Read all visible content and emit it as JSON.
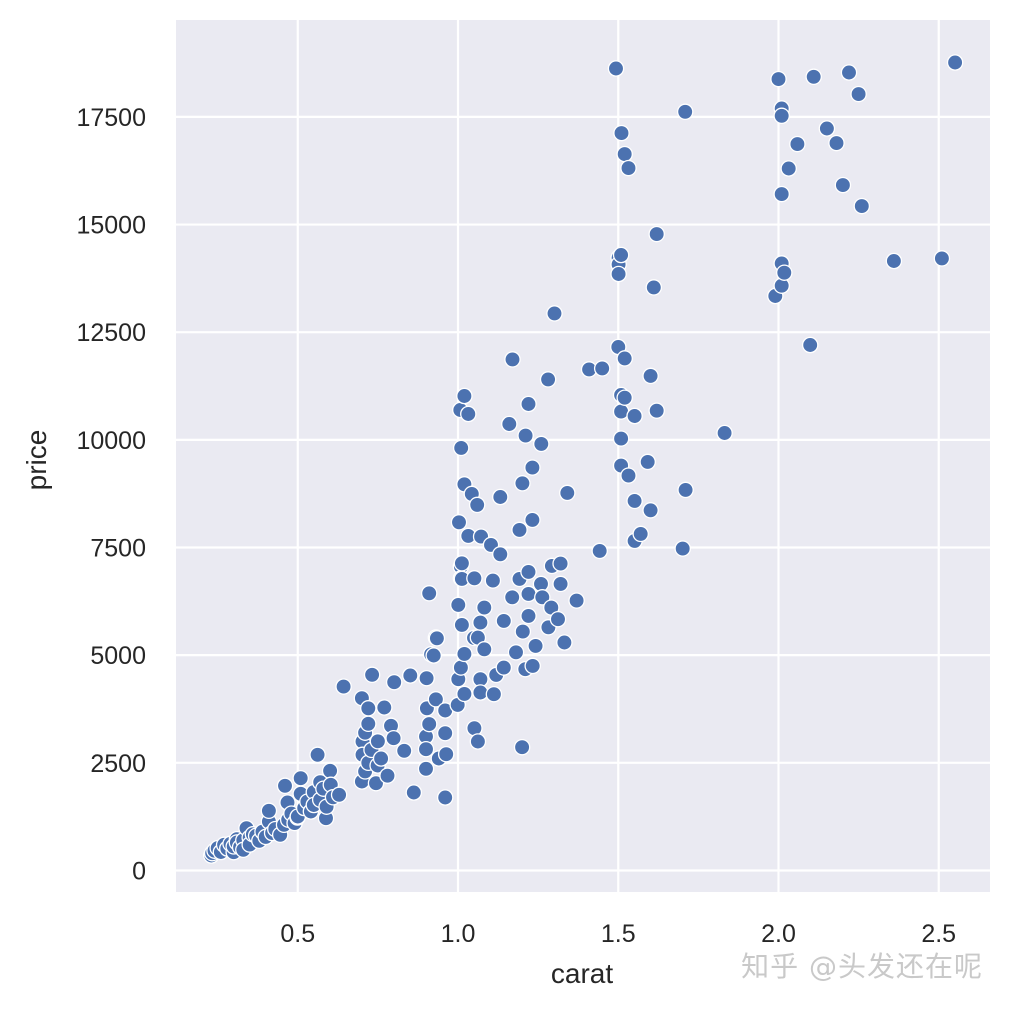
{
  "chart_data": {
    "type": "scatter",
    "title": "",
    "xlabel": "carat",
    "ylabel": "price",
    "xlim": [
      0.12,
      2.66
    ],
    "ylim": [
      -500,
      19750
    ],
    "grid": true,
    "legend": null,
    "style": {
      "background": "#eaeaf2",
      "gridline": "#ffffff",
      "marker_color": "#4c72b0",
      "marker_edge": "#ffffff"
    },
    "x_ticks": [
      0.5,
      1.0,
      1.5,
      2.0,
      2.5
    ],
    "x_tick_labels": [
      "0.5",
      "1.0",
      "1.5",
      "2.0",
      "2.5"
    ],
    "y_ticks": [
      0,
      2500,
      5000,
      7500,
      10000,
      12500,
      15000,
      17500
    ],
    "y_tick_labels": [
      "0",
      "2500",
      "5000",
      "7500",
      "10000",
      "12500",
      "15000",
      "17500"
    ],
    "points": [
      [
        0.23,
        348
      ],
      [
        0.233,
        402
      ],
      [
        0.24,
        460
      ],
      [
        0.25,
        520
      ],
      [
        0.26,
        430
      ],
      [
        0.27,
        596
      ],
      [
        0.28,
        510
      ],
      [
        0.29,
        620
      ],
      [
        0.3,
        425
      ],
      [
        0.3,
        560
      ],
      [
        0.31,
        727
      ],
      [
        0.31,
        650
      ],
      [
        0.32,
        540
      ],
      [
        0.33,
        700
      ],
      [
        0.33,
        480
      ],
      [
        0.34,
        982
      ],
      [
        0.35,
        760
      ],
      [
        0.35,
        600
      ],
      [
        0.36,
        840
      ],
      [
        0.37,
        805
      ],
      [
        0.38,
        690
      ],
      [
        0.39,
        900
      ],
      [
        0.4,
        780
      ],
      [
        0.41,
        1137
      ],
      [
        0.41,
        1386
      ],
      [
        0.42,
        870
      ],
      [
        0.43,
        960
      ],
      [
        0.445,
        829
      ],
      [
        0.457,
        1061
      ],
      [
        0.46,
        1966
      ],
      [
        0.468,
        1578
      ],
      [
        0.47,
        1180
      ],
      [
        0.48,
        1320
      ],
      [
        0.49,
        1100
      ],
      [
        0.499,
        1230
      ],
      [
        0.5,
        1253
      ],
      [
        0.509,
        2143
      ],
      [
        0.509,
        1780
      ],
      [
        0.52,
        1450
      ],
      [
        0.53,
        1600
      ],
      [
        0.541,
        1370
      ],
      [
        0.55,
        1820
      ],
      [
        0.55,
        1520
      ],
      [
        0.562,
        2686
      ],
      [
        0.57,
        1641
      ],
      [
        0.57,
        2050
      ],
      [
        0.58,
        1900
      ],
      [
        0.588,
        1214
      ],
      [
        0.59,
        1480
      ],
      [
        0.601,
        2314
      ],
      [
        0.603,
        1989
      ],
      [
        0.61,
        1700
      ],
      [
        0.629,
        1757
      ],
      [
        0.643,
        4271
      ],
      [
        0.7,
        4000
      ],
      [
        0.7,
        2066
      ],
      [
        0.702,
        2994
      ],
      [
        0.702,
        2686
      ],
      [
        0.71,
        2300
      ],
      [
        0.71,
        3200
      ],
      [
        0.72,
        3767
      ],
      [
        0.72,
        3405
      ],
      [
        0.72,
        2500
      ],
      [
        0.73,
        2800
      ],
      [
        0.732,
        4543
      ],
      [
        0.744,
        2027
      ],
      [
        0.749,
        2437
      ],
      [
        0.75,
        3000
      ],
      [
        0.76,
        2600
      ],
      [
        0.77,
        3784
      ],
      [
        0.78,
        2200
      ],
      [
        0.791,
        3359
      ],
      [
        0.799,
        3071
      ],
      [
        0.801,
        4371
      ],
      [
        0.832,
        2778
      ],
      [
        0.851,
        4527
      ],
      [
        0.862,
        1811
      ],
      [
        0.9,
        3110
      ],
      [
        0.9,
        2816
      ],
      [
        0.9,
        2360
      ],
      [
        0.902,
        4464
      ],
      [
        0.903,
        3767
      ],
      [
        0.91,
        6437
      ],
      [
        0.91,
        3400
      ],
      [
        0.916,
        5021
      ],
      [
        0.924,
        4991
      ],
      [
        0.931,
        5409
      ],
      [
        0.931,
        3976
      ],
      [
        0.934,
        5392
      ],
      [
        0.94,
        2600
      ],
      [
        0.96,
        3714
      ],
      [
        0.96,
        3187
      ],
      [
        0.96,
        1694
      ],
      [
        0.963,
        2700
      ],
      [
        0.999,
        3846
      ],
      [
        1.001,
        6168
      ],
      [
        1.001,
        4441
      ],
      [
        1.003,
        8085
      ],
      [
        1.007,
        10694
      ],
      [
        1.009,
        7057
      ],
      [
        1.009,
        6785
      ],
      [
        1.009,
        4712
      ],
      [
        1.01,
        9812
      ],
      [
        1.012,
        7134
      ],
      [
        1.012,
        6771
      ],
      [
        1.012,
        5703
      ],
      [
        1.02,
        11019
      ],
      [
        1.02,
        8967
      ],
      [
        1.02,
        5030
      ],
      [
        1.02,
        4101
      ],
      [
        1.032,
        10601
      ],
      [
        1.032,
        7769
      ],
      [
        1.043,
        8744
      ],
      [
        1.05,
        5400
      ],
      [
        1.051,
        6785
      ],
      [
        1.051,
        3303
      ],
      [
        1.06,
        8489
      ],
      [
        1.062,
        5408
      ],
      [
        1.062,
        2994
      ],
      [
        1.07,
        5757
      ],
      [
        1.07,
        4441
      ],
      [
        1.07,
        4132
      ],
      [
        1.072,
        7753
      ],
      [
        1.082,
        6105
      ],
      [
        1.082,
        5137
      ],
      [
        1.103,
        7560
      ],
      [
        1.109,
        6732
      ],
      [
        1.112,
        4093
      ],
      [
        1.119,
        4541
      ],
      [
        1.132,
        8674
      ],
      [
        1.132,
        7343
      ],
      [
        1.143,
        5796
      ],
      [
        1.143,
        4712
      ],
      [
        1.16,
        10369
      ],
      [
        1.169,
        6344
      ],
      [
        1.17,
        11869
      ],
      [
        1.181,
        5067
      ],
      [
        1.192,
        7909
      ],
      [
        1.192,
        6771
      ],
      [
        1.2,
        2862
      ],
      [
        1.201,
        8991
      ],
      [
        1.202,
        5548
      ],
      [
        1.21,
        4673
      ],
      [
        1.211,
        10098
      ],
      [
        1.22,
        10833
      ],
      [
        1.22,
        6933
      ],
      [
        1.22,
        6423
      ],
      [
        1.22,
        5911
      ],
      [
        1.232,
        9355
      ],
      [
        1.232,
        8141
      ],
      [
        1.233,
        4751
      ],
      [
        1.242,
        5216
      ],
      [
        1.259,
        6655
      ],
      [
        1.26,
        9905
      ],
      [
        1.263,
        6344
      ],
      [
        1.281,
        11405
      ],
      [
        1.282,
        5648
      ],
      [
        1.291,
        6105
      ],
      [
        1.293,
        7073
      ],
      [
        1.301,
        12937
      ],
      [
        1.312,
        5834
      ],
      [
        1.32,
        7126
      ],
      [
        1.32,
        6655
      ],
      [
        1.332,
        5293
      ],
      [
        1.341,
        8767
      ],
      [
        1.37,
        6267
      ],
      [
        1.409,
        11637
      ],
      [
        1.442,
        7421
      ],
      [
        1.45,
        11660
      ],
      [
        1.493,
        18623
      ],
      [
        1.5,
        12156
      ],
      [
        1.501,
        14230
      ],
      [
        1.501,
        14074
      ],
      [
        1.501,
        13851
      ],
      [
        1.509,
        14292
      ],
      [
        1.509,
        11042
      ],
      [
        1.509,
        10655
      ],
      [
        1.509,
        10028
      ],
      [
        1.509,
        9401
      ],
      [
        1.51,
        17124
      ],
      [
        1.52,
        16636
      ],
      [
        1.52,
        11892
      ],
      [
        1.52,
        10980
      ],
      [
        1.532,
        16311
      ],
      [
        1.532,
        9169
      ],
      [
        1.551,
        10553
      ],
      [
        1.551,
        8582
      ],
      [
        1.551,
        7653
      ],
      [
        1.57,
        7816
      ],
      [
        1.592,
        9487
      ],
      [
        1.601,
        11484
      ],
      [
        1.601,
        8364
      ],
      [
        1.611,
        13541
      ],
      [
        1.62,
        14779
      ],
      [
        1.62,
        10678
      ],
      [
        1.701,
        7475
      ],
      [
        1.709,
        17618
      ],
      [
        1.71,
        8837
      ],
      [
        1.832,
        10160
      ],
      [
        1.99,
        13340
      ],
      [
        2.0,
        18378
      ],
      [
        2.01,
        17695
      ],
      [
        2.01,
        17525
      ],
      [
        2.01,
        15708
      ],
      [
        2.01,
        14098
      ],
      [
        2.01,
        13580
      ],
      [
        2.018,
        13882
      ],
      [
        2.032,
        16302
      ],
      [
        2.059,
        16868
      ],
      [
        2.099,
        12203
      ],
      [
        2.11,
        18431
      ],
      [
        2.151,
        17231
      ],
      [
        2.181,
        16892
      ],
      [
        2.201,
        15917
      ],
      [
        2.22,
        18531
      ],
      [
        2.25,
        18030
      ],
      [
        2.26,
        15429
      ],
      [
        2.36,
        14153
      ],
      [
        2.51,
        14213
      ],
      [
        2.551,
        18763
      ]
    ]
  },
  "watermark": "知乎 @头发还在呢"
}
